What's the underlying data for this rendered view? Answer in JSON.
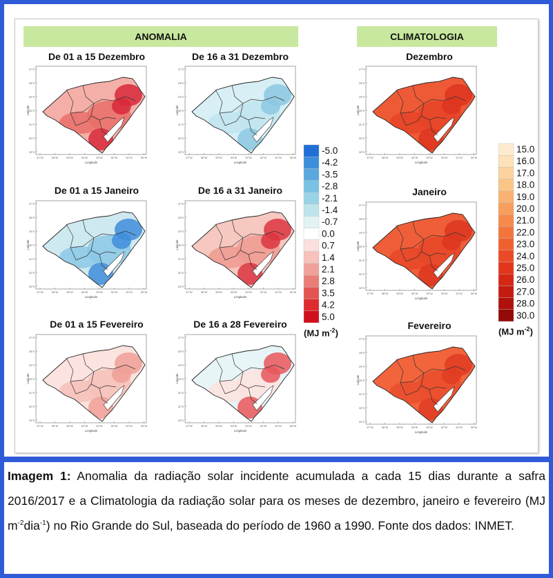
{
  "headers": {
    "anomalia": "ANOMALIA",
    "climatologia": "CLIMATOLOGIA"
  },
  "panels": {
    "anom_dec1": "De 01 a 15 Dezembro",
    "anom_dec2": "De 16 a 31 Dezembro",
    "anom_jan1": "De 01 a 15 Janeiro",
    "anom_jan2": "De 16 a 31 Janeiro",
    "anom_feb1": "De 01 a 15 Fevereiro",
    "anom_feb2": "De 16 a 28 Fevereiro",
    "clim_dec": "Dezembro",
    "clim_jan": "Janeiro",
    "clim_feb": "Fevereiro"
  },
  "axes": {
    "xlabel": "Longitude",
    "ylabel": "Latitude",
    "lat_ticks": [
      "27°S",
      "28°S",
      "29°S",
      "30°S",
      "31°S",
      "32°S",
      "33°S"
    ],
    "lon_ticks": [
      "57°W",
      "56°W",
      "55°W",
      "54°W",
      "53°W",
      "52°W",
      "51°W",
      "50°W"
    ]
  },
  "anomaly_scale": {
    "labels": [
      "-5.0",
      "-4.2",
      "-3.5",
      "-2.8",
      "-2.1",
      "-1.4",
      "-0.7",
      "0.0",
      "0.7",
      "1.4",
      "2.1",
      "2.8",
      "3.5",
      "4.2",
      "5.0"
    ],
    "colors": [
      "#1f6fd6",
      "#3d8fdc",
      "#5aa8df",
      "#79c2e3",
      "#9bd3e6",
      "#bfe4ec",
      "#e2f3f4",
      "#ffffff",
      "#fbe0dd",
      "#f6c2bb",
      "#f0a199",
      "#ea7e76",
      "#e45552",
      "#dd2b2e",
      "#d10f1c"
    ],
    "unit_base": "(MJ m",
    "unit_exp": "-2",
    "unit_close": ")"
  },
  "climatology_scale": {
    "labels": [
      "15.0",
      "16.0",
      "17.0",
      "18.0",
      "19.0",
      "20.0",
      "21.0",
      "22.0",
      "23.0",
      "24.0",
      "25.0",
      "26.0",
      "27.0",
      "28.0",
      "30.0"
    ],
    "colors": [
      "#fdebd0",
      "#fde1b9",
      "#fcd39f",
      "#fbc587",
      "#f9b271",
      "#f89e5c",
      "#f68a4b",
      "#f4753c",
      "#f0602f",
      "#ea4a24",
      "#e2361b",
      "#d62614",
      "#c51a0f",
      "#b0110c",
      "#920a08"
    ],
    "unit_base": "(MJ m",
    "unit_exp": "-2",
    "unit_close": ")"
  },
  "caption": {
    "label": "Imagem 1:",
    "text_1": " Anomalia da radiação solar incidente acumulada a cada 15 dias durante a safra 2016/2017 e a Climatologia da radiação solar para os meses de dezembro, janeiro e fevereiro (MJ m",
    "sup_1": "-2",
    "text_2": "dia",
    "sup_2": "-1",
    "text_3": ") no Rio Grande do Sul, baseada do período de 1960 a 1990. Fonte dos dados: INMET."
  },
  "map_palettes": {
    "anom_dec1": [
      "#f3b0a8",
      "#e96f68",
      "#d8283a"
    ],
    "anom_dec2": [
      "#d7eff4",
      "#bfe4ee",
      "#8cc8e2"
    ],
    "anom_jan1": [
      "#cfe9f1",
      "#8cc8e6",
      "#3f8ddb"
    ],
    "anom_jan2": [
      "#f6c8c0",
      "#ee9a90",
      "#dc3540"
    ],
    "anom_feb1": [
      "#fbe3df",
      "#f5c0b8",
      "#ef9f96"
    ],
    "anom_feb2": [
      "#e7f4f7",
      "#fbe2de",
      "#e8565a"
    ],
    "clim_dec": [
      "#ee5a36",
      "#e64427",
      "#dd3520"
    ],
    "clim_jan": [
      "#ef5e38",
      "#e64628",
      "#dd3621"
    ],
    "clim_feb": [
      "#f2643c",
      "#ea4d2c",
      "#e03c23"
    ]
  }
}
